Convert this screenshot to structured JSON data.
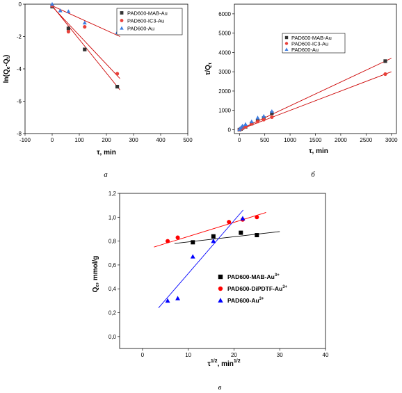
{
  "chart_data": [
    {
      "type": "scatter",
      "panel_label": "а",
      "xlabel": "τ, min",
      "ylabel": "ln(Q",
      "ylabel_sub": "e",
      "ylabel_mid": "-Q",
      "ylabel_sub2": "t",
      "ylabel_end": ")",
      "xlim": [
        -100,
        500
      ],
      "ylim": [
        -8,
        0
      ],
      "xticks": [
        "-100",
        "0",
        "100",
        "200",
        "300",
        "400",
        "500"
      ],
      "yticks": [
        "-8",
        "-6",
        "-4",
        "-2",
        "0"
      ],
      "legend_position": "top-right",
      "series": [
        {
          "name": "PAD600-MAB-Au",
          "marker": "square",
          "color": "#333333",
          "x": [
            0,
            60,
            120,
            240
          ],
          "y": [
            -0.15,
            -1.5,
            -2.8,
            -5.1
          ],
          "fit_x": [
            0,
            250
          ],
          "fit_y": [
            -0.1,
            -5.3
          ]
        },
        {
          "name": "PAD600-IC3-Au",
          "marker": "circle",
          "color": "#e8413a",
          "x": [
            0,
            60,
            120,
            240
          ],
          "y": [
            -0.1,
            -1.7,
            -1.4,
            -4.3
          ],
          "fit_x": [
            0,
            250
          ],
          "fit_y": [
            -0.15,
            -4.6
          ]
        },
        {
          "name": "PAD600-Au",
          "marker": "triangle",
          "color": "#3d7de0",
          "x": [
            0,
            30,
            60,
            120,
            240
          ],
          "y": [
            0,
            -0.4,
            -0.45,
            -1.15,
            -1.75
          ],
          "fit_x": [
            0,
            250
          ],
          "fit_y": [
            -0.1,
            -2.0
          ]
        }
      ]
    },
    {
      "type": "scatter",
      "panel_label": "б",
      "xlabel": "τ, min",
      "ylabel": "τ/Q",
      "ylabel_sub": "τ",
      "xlim": [
        -100,
        3100
      ],
      "ylim": [
        -200,
        6500
      ],
      "xticks": [
        "0",
        "500",
        "1000",
        "1500",
        "2000",
        "2500",
        "3000"
      ],
      "yticks": [
        "0",
        "1000",
        "2000",
        "3000",
        "4000",
        "5000",
        "6000"
      ],
      "legend_position": "top-right",
      "series": [
        {
          "name": "PAD600-MAB-Au",
          "marker": "square",
          "color": "#333333",
          "x": [
            0,
            30,
            60,
            120,
            240,
            360,
            480,
            640,
            2880
          ],
          "y": [
            0,
            40,
            90,
            150,
            320,
            480,
            600,
            850,
            3550
          ],
          "fit_x": [
            0,
            3000
          ],
          "fit_y": [
            0,
            3700
          ]
        },
        {
          "name": "PAD600-IC3-Au",
          "marker": "circle",
          "color": "#e8413a",
          "x": [
            0,
            30,
            60,
            120,
            240,
            360,
            480,
            640,
            2880
          ],
          "y": [
            0,
            40,
            80,
            150,
            300,
            420,
            520,
            650,
            2880
          ],
          "fit_x": [
            0,
            3000
          ],
          "fit_y": [
            0,
            3000
          ]
        },
        {
          "name": "PAD600-Au",
          "marker": "triangle",
          "color": "#3d7de0",
          "x": [
            0,
            30,
            60,
            120,
            240,
            360,
            480,
            640
          ],
          "y": [
            20,
            110,
            200,
            280,
            420,
            620,
            700,
            950
          ],
          "fit_x": [],
          "fit_y": []
        }
      ]
    },
    {
      "type": "scatter",
      "panel_label": "в",
      "xlabel": "τ",
      "xlabel_sup": "1/2",
      "xlabel_end": ", min",
      "xlabel_sup2": "1/2",
      "ylabel": "Q",
      "ylabel_sub": "e",
      "ylabel_end": ", mmol/g",
      "xlim": [
        -5,
        40
      ],
      "ylim": [
        -0.1,
        1.2
      ],
      "xticks": [
        "0",
        "10",
        "20",
        "30",
        "40"
      ],
      "yticks": [
        "0,0",
        "0,2",
        "0,4",
        "0,6",
        "0,8",
        "1,0",
        "1,2"
      ],
      "legend_position": "bottom-right",
      "series": [
        {
          "name": "PAD600-MAB-Au",
          "sup": "3+",
          "marker": "square",
          "color": "#000000",
          "x": [
            11,
            15.5,
            21.5,
            25
          ],
          "y": [
            0.79,
            0.84,
            0.87,
            0.85
          ],
          "fit_x": [
            7,
            30
          ],
          "fit_y": [
            0.78,
            0.88
          ]
        },
        {
          "name": "PAD600-DiPDTF-Au",
          "sup": "3+",
          "marker": "circle",
          "color": "#ff0000",
          "x": [
            5.5,
            7.7,
            18.9,
            21.9,
            25
          ],
          "y": [
            0.8,
            0.83,
            0.96,
            0.98,
            1.0
          ],
          "fit_x": [
            2.5,
            27
          ],
          "fit_y": [
            0.75,
            1.04
          ]
        },
        {
          "name": "PAD600-Au",
          "sup": "3+",
          "marker": "triangle",
          "color": "#0000ff",
          "x": [
            5.5,
            7.7,
            11,
            15.5,
            21.9
          ],
          "y": [
            0.3,
            0.32,
            0.67,
            0.8,
            0.99
          ],
          "fit_x": [
            3.5,
            22
          ],
          "fit_y": [
            0.24,
            1.06
          ]
        }
      ]
    }
  ]
}
